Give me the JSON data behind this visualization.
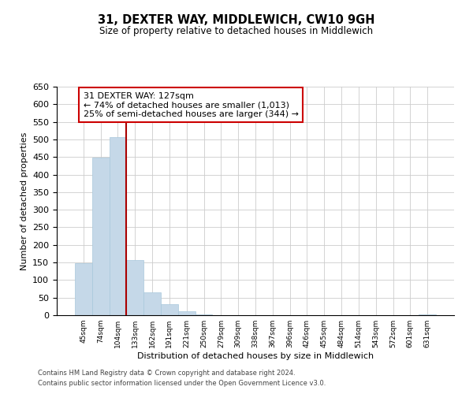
{
  "title": "31, DEXTER WAY, MIDDLEWICH, CW10 9GH",
  "subtitle": "Size of property relative to detached houses in Middlewich",
  "xlabel": "Distribution of detached houses by size in Middlewich",
  "ylabel": "Number of detached properties",
  "bar_labels": [
    "45sqm",
    "74sqm",
    "104sqm",
    "133sqm",
    "162sqm",
    "191sqm",
    "221sqm",
    "250sqm",
    "279sqm",
    "309sqm",
    "338sqm",
    "367sqm",
    "396sqm",
    "426sqm",
    "455sqm",
    "484sqm",
    "514sqm",
    "543sqm",
    "572sqm",
    "601sqm",
    "631sqm"
  ],
  "bar_values": [
    148,
    448,
    507,
    157,
    65,
    32,
    12,
    3,
    0,
    0,
    0,
    0,
    0,
    0,
    0,
    0,
    0,
    0,
    0,
    0,
    3
  ],
  "bar_color": "#c5d8e8",
  "bar_edge_color": "#a8c8dc",
  "vline_color": "#aa0000",
  "ylim": [
    0,
    650
  ],
  "yticks": [
    0,
    50,
    100,
    150,
    200,
    250,
    300,
    350,
    400,
    450,
    500,
    550,
    600,
    650
  ],
  "annotation_title": "31 DEXTER WAY: 127sqm",
  "annotation_line1": "← 74% of detached houses are smaller (1,013)",
  "annotation_line2": "25% of semi-detached houses are larger (344) →",
  "annotation_box_color": "#ffffff",
  "annotation_box_edge": "#cc0000",
  "footer1": "Contains HM Land Registry data © Crown copyright and database right 2024.",
  "footer2": "Contains public sector information licensed under the Open Government Licence v3.0.",
  "background_color": "#ffffff",
  "grid_color": "#cccccc"
}
